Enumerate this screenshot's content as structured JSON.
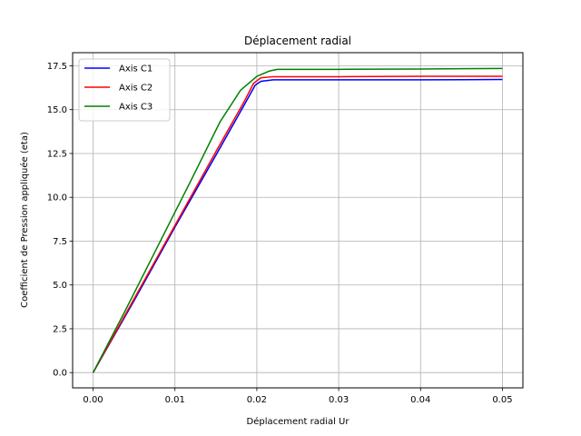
{
  "chart_data": {
    "type": "line",
    "title": "Déplacement radial",
    "xlabel": "Déplacement radial Ur",
    "ylabel": "Coefficient de Pression appliquée (eta)",
    "xlim": [
      -0.0025,
      0.0525
    ],
    "ylim": [
      -0.87,
      18.25
    ],
    "xticks": [
      0.0,
      0.01,
      0.02,
      0.03,
      0.04,
      0.05
    ],
    "xtick_labels": [
      "0.00",
      "0.01",
      "0.02",
      "0.03",
      "0.04",
      "0.05"
    ],
    "yticks": [
      0.0,
      2.5,
      5.0,
      7.5,
      10.0,
      12.5,
      15.0,
      17.5
    ],
    "ytick_labels": [
      "0.0",
      "2.5",
      "5.0",
      "7.5",
      "10.0",
      "12.5",
      "15.0",
      "17.5"
    ],
    "grid": true,
    "legend_position": "upper-left",
    "series": [
      {
        "name": "Axis C1",
        "color": "#0000ff",
        "x": [
          0.0,
          0.005,
          0.01,
          0.015,
          0.0185,
          0.0198,
          0.0205,
          0.022,
          0.03,
          0.04,
          0.05
        ],
        "y": [
          0.0,
          4.1,
          8.3,
          12.4,
          15.3,
          16.4,
          16.62,
          16.7,
          16.7,
          16.7,
          16.72
        ]
      },
      {
        "name": "Axis C2",
        "color": "#ff0000",
        "x": [
          0.0,
          0.005,
          0.01,
          0.015,
          0.0185,
          0.0196,
          0.0205,
          0.022,
          0.03,
          0.04,
          0.05
        ],
        "y": [
          0.0,
          4.2,
          8.4,
          12.6,
          15.5,
          16.5,
          16.82,
          16.88,
          16.88,
          16.9,
          16.9
        ]
      },
      {
        "name": "Axis C3",
        "color": "#008000",
        "x": [
          0.0,
          0.004,
          0.008,
          0.012,
          0.0155,
          0.018,
          0.02,
          0.0215,
          0.0225,
          0.03,
          0.04,
          0.05
        ],
        "y": [
          0.0,
          3.6,
          7.3,
          11.0,
          14.3,
          16.1,
          16.9,
          17.2,
          17.3,
          17.3,
          17.32,
          17.35
        ]
      }
    ]
  }
}
